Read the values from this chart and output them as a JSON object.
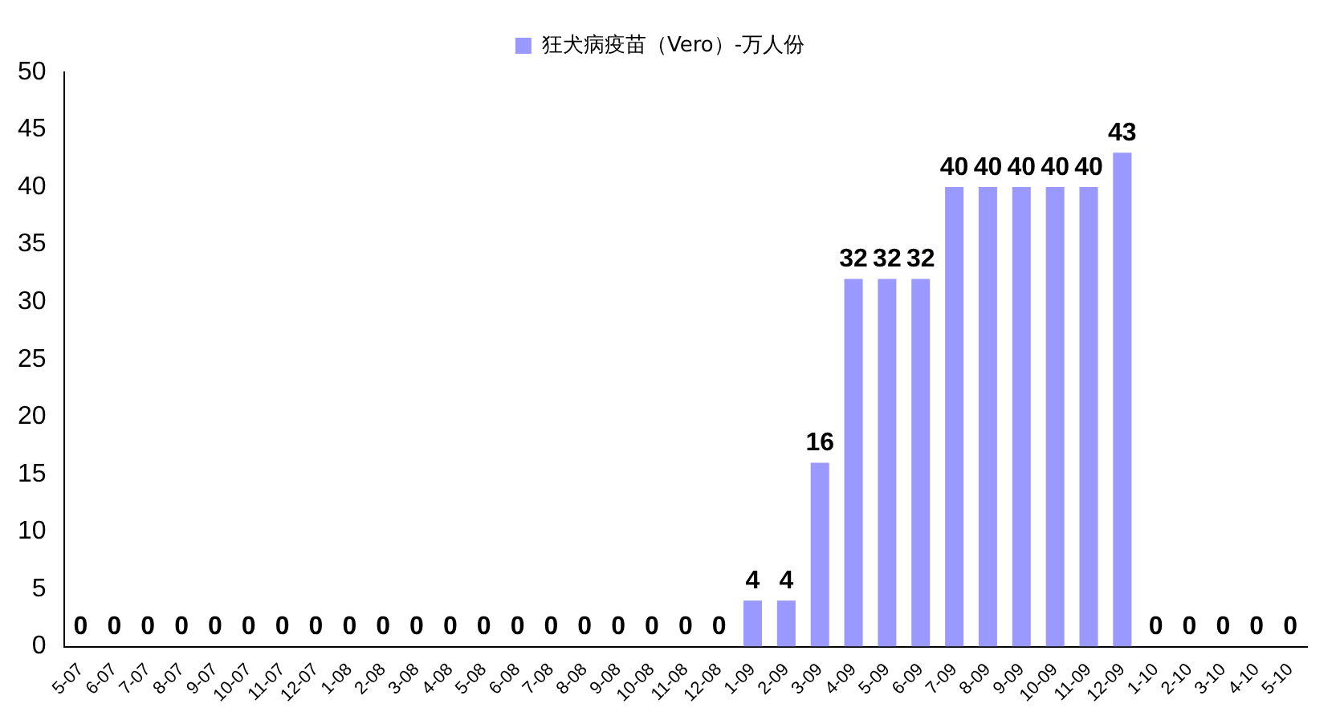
{
  "chart_data": {
    "type": "bar",
    "categories": [
      "5-07",
      "6-07",
      "7-07",
      "8-07",
      "9-07",
      "10-07",
      "11-07",
      "12-07",
      "1-08",
      "2-08",
      "3-08",
      "4-08",
      "5-08",
      "6-08",
      "7-08",
      "8-08",
      "9-08",
      "10-08",
      "11-08",
      "12-08",
      "1-09",
      "2-09",
      "3-09",
      "4-09",
      "5-09",
      "6-09",
      "7-09",
      "8-09",
      "9-09",
      "10-09",
      "11-09",
      "12-09",
      "1-10",
      "2-10",
      "3-10",
      "4-10",
      "5-10"
    ],
    "series": [
      {
        "name": "狂犬病疫苗（Vero）-万人份",
        "color": "#9999ff",
        "values": [
          0,
          0,
          0,
          0,
          0,
          0,
          0,
          0,
          0,
          0,
          0,
          0,
          0,
          0,
          0,
          0,
          0,
          0,
          0,
          0,
          4,
          4,
          16,
          32,
          32,
          32,
          40,
          40,
          40,
          40,
          40,
          43,
          0,
          0,
          0,
          0,
          0
        ]
      }
    ],
    "ylim": [
      0,
      50
    ],
    "yticks": [
      0,
      5,
      10,
      15,
      20,
      25,
      30,
      35,
      40,
      45,
      50
    ],
    "grid": false,
    "legend": "top",
    "data_labels": true
  }
}
